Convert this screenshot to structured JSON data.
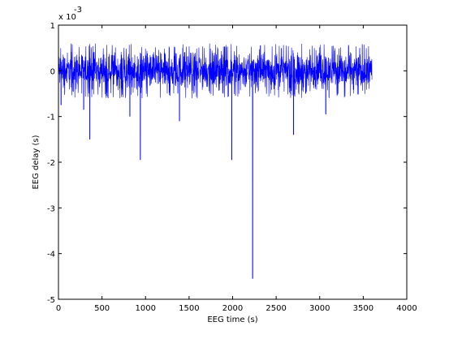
{
  "chart_data": {
    "type": "line",
    "xlabel": "EEG time (s)",
    "ylabel": "EEG delay (s)",
    "exponent_label": {
      "base": "x 10",
      "power": "-3"
    },
    "xlim": [
      0,
      4000
    ],
    "ylim": [
      -5,
      1
    ],
    "y_scale": 0.001,
    "x_ticks": [
      0,
      500,
      1000,
      1500,
      2000,
      2500,
      3000,
      3500,
      4000
    ],
    "x_tick_labels": [
      "0",
      "500",
      "1000",
      "1500",
      "2000",
      "2500",
      "3000",
      "3500",
      "4000"
    ],
    "y_ticks": [
      1,
      0,
      -1,
      -2,
      -3,
      -4,
      -5
    ],
    "y_tick_labels": [
      "1",
      "0",
      "-1",
      "-2",
      "-3",
      "-4",
      "-5"
    ],
    "grid": false,
    "series": [
      {
        "color": "#0000ff",
        "noise_band": {
          "x_start": 0,
          "x_end": 3600,
          "min": -0.6,
          "max": 0.6,
          "unit": "1e-3 s"
        },
        "spikes": [
          {
            "x": 30,
            "y": -0.75
          },
          {
            "x": 290,
            "y": -0.85
          },
          {
            "x": 360,
            "y": -1.5
          },
          {
            "x": 820,
            "y": -1.0
          },
          {
            "x": 940,
            "y": -1.95
          },
          {
            "x": 1390,
            "y": -1.1
          },
          {
            "x": 1990,
            "y": -1.95
          },
          {
            "x": 2230,
            "y": -4.55
          },
          {
            "x": 2700,
            "y": -1.4
          },
          {
            "x": 3070,
            "y": -0.95
          }
        ]
      }
    ]
  }
}
